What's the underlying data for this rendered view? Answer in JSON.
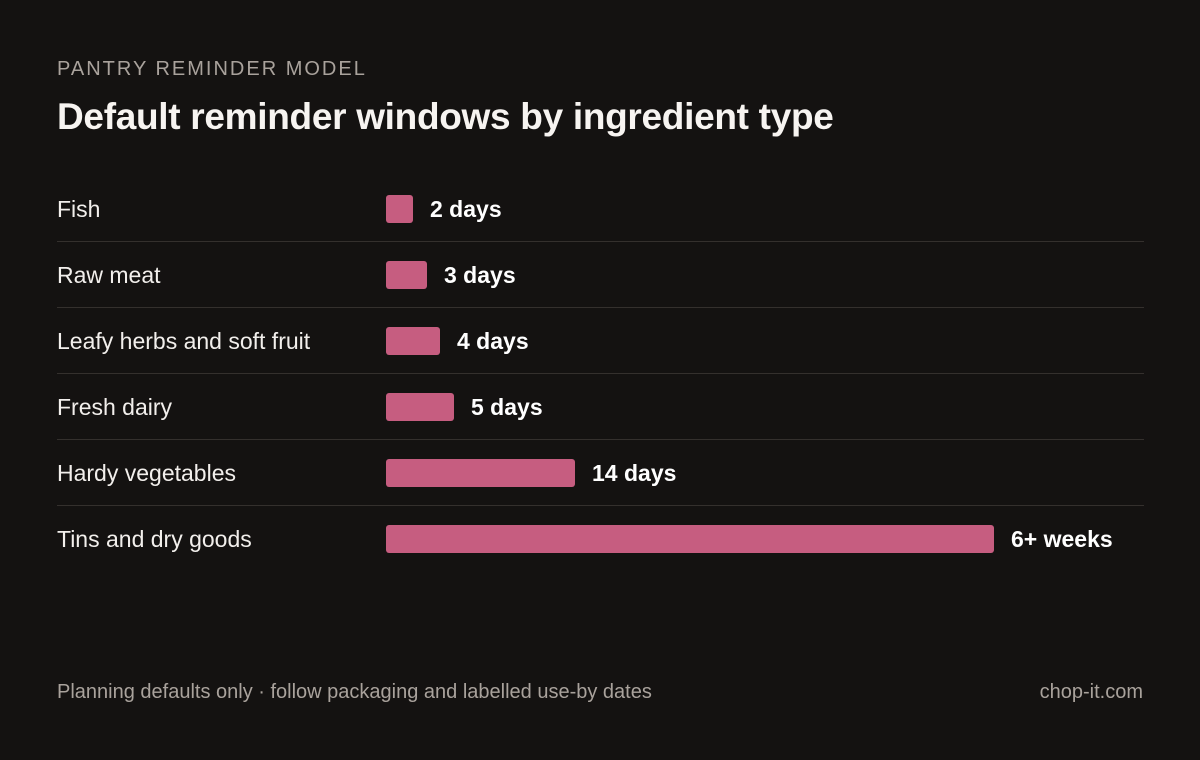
{
  "eyebrow": "PANTRY REMINDER MODEL",
  "footer": {
    "note": "Planning defaults only · follow packaging and labelled use-by dates",
    "site": "chop-it.com"
  },
  "colors": {
    "bar": "#c65d80",
    "background": "#141211",
    "divider": "#34302d"
  },
  "chart_data": {
    "type": "bar",
    "orientation": "horizontal",
    "title": "Default reminder windows by ingredient type",
    "xlabel": "",
    "ylabel": "",
    "grid": false,
    "unit": "days",
    "categories": [
      "Fish",
      "Raw meat",
      "Leafy herbs and soft fruit",
      "Fresh dairy",
      "Hardy vegetables",
      "Tins and dry goods"
    ],
    "values": [
      2,
      3,
      4,
      5,
      14,
      45
    ],
    "value_labels": [
      "2 days",
      "3 days",
      "4 days",
      "5 days",
      "14 days",
      "6+ weeks"
    ]
  }
}
